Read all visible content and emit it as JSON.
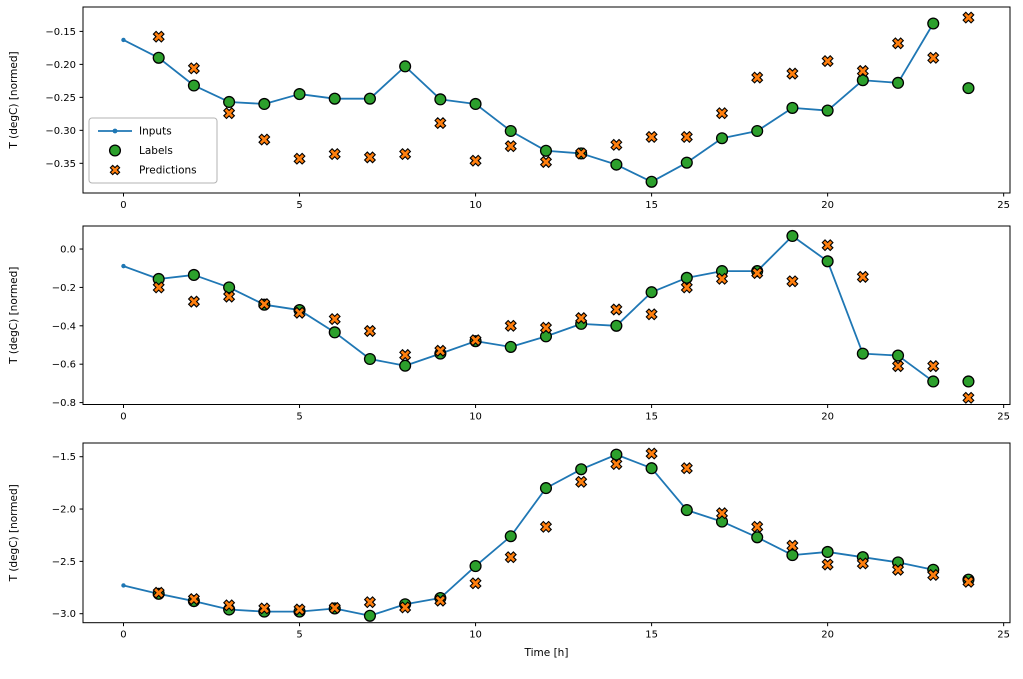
{
  "figure": {
    "kind": "matplotlib-figure",
    "xlabel": "Time [h]",
    "ylabel": "T (degC) [normed]",
    "legend": {
      "entries": [
        "Inputs",
        "Labels",
        "Predictions"
      ],
      "location": "center-left-of-first-subplot"
    },
    "colors": {
      "inputs_line": "#1f77b4",
      "labels_fill": "#2ca02c",
      "predictions_fill": "#ff7f0e",
      "marker_edge": "#000000",
      "legend_border": "#b3b3b3",
      "legend_bg": "#ffffff",
      "spine": "#000000"
    }
  },
  "chart_data": [
    {
      "type": "line",
      "subplot": 1,
      "ylabel": "T (degC) [normed]",
      "xlabel": "",
      "legend_visible": true,
      "xlim": [
        -1.15,
        25.18
      ],
      "ylim": [
        -0.395,
        -0.113
      ],
      "xticks": {
        "values": [
          0,
          5,
          10,
          15,
          20,
          25
        ],
        "labels": [
          "0",
          "5",
          "10",
          "15",
          "20",
          "25"
        ]
      },
      "yticks": {
        "values": [
          -0.15,
          -0.2,
          -0.25,
          -0.3,
          -0.35
        ],
        "labels": [
          "−0.15",
          "−0.20",
          "−0.25",
          "−0.30",
          "−0.35"
        ]
      },
      "series": [
        {
          "name": "Inputs",
          "style": "line-with-dots",
          "x": [
            0,
            1,
            2,
            3,
            4,
            5,
            6,
            7,
            8,
            9,
            10,
            11,
            12,
            13,
            14,
            15,
            16,
            17,
            18,
            19,
            20,
            21,
            22,
            23
          ],
          "y": [
            -0.163,
            -0.19,
            -0.232,
            -0.257,
            -0.26,
            -0.245,
            -0.252,
            -0.252,
            -0.203,
            -0.253,
            -0.26,
            -0.301,
            -0.331,
            -0.335,
            -0.352,
            -0.378,
            -0.349,
            -0.312,
            -0.301,
            -0.266,
            -0.27,
            -0.224,
            -0.228,
            -0.138
          ]
        },
        {
          "name": "Labels",
          "style": "circle",
          "x": [
            1,
            2,
            3,
            4,
            5,
            6,
            7,
            8,
            9,
            10,
            11,
            12,
            13,
            14,
            15,
            16,
            17,
            18,
            19,
            20,
            21,
            22,
            23,
            24
          ],
          "y": [
            -0.19,
            -0.232,
            -0.257,
            -0.26,
            -0.245,
            -0.252,
            -0.252,
            -0.203,
            -0.253,
            -0.26,
            -0.301,
            -0.331,
            -0.335,
            -0.352,
            -0.378,
            -0.349,
            -0.312,
            -0.301,
            -0.266,
            -0.27,
            -0.224,
            -0.228,
            -0.138,
            -0.236
          ]
        },
        {
          "name": "Predictions",
          "style": "x-marker",
          "x": [
            1,
            2,
            3,
            4,
            5,
            6,
            7,
            8,
            9,
            10,
            11,
            12,
            13,
            14,
            15,
            16,
            17,
            18,
            19,
            20,
            21,
            22,
            23,
            24
          ],
          "y": [
            -0.158,
            -0.206,
            -0.274,
            -0.314,
            -0.343,
            -0.336,
            -0.341,
            -0.336,
            -0.289,
            -0.346,
            -0.324,
            -0.348,
            -0.335,
            -0.322,
            -0.31,
            -0.31,
            -0.274,
            -0.22,
            -0.214,
            -0.195,
            -0.21,
            -0.168,
            -0.19,
            -0.129
          ]
        }
      ]
    },
    {
      "type": "line",
      "subplot": 2,
      "ylabel": "T (degC) [normed]",
      "xlabel": "",
      "legend_visible": false,
      "xlim": [
        -1.15,
        25.18
      ],
      "ylim": [
        -0.81,
        0.12
      ],
      "xticks": {
        "values": [
          0,
          5,
          10,
          15,
          20,
          25
        ],
        "labels": [
          "0",
          "5",
          "10",
          "15",
          "20",
          "25"
        ]
      },
      "yticks": {
        "values": [
          0.0,
          -0.2,
          -0.4,
          -0.6,
          -0.8
        ],
        "labels": [
          "0.0",
          "−0.2",
          "−0.4",
          "−0.6",
          "−0.8"
        ]
      },
      "series": [
        {
          "name": "Inputs",
          "style": "line-with-dots",
          "x": [
            0,
            1,
            2,
            3,
            4,
            5,
            6,
            7,
            8,
            9,
            10,
            11,
            12,
            13,
            14,
            15,
            16,
            17,
            18,
            19,
            20,
            21,
            22,
            23
          ],
          "y": [
            -0.089,
            -0.156,
            -0.135,
            -0.2,
            -0.29,
            -0.318,
            -0.434,
            -0.573,
            -0.608,
            -0.545,
            -0.48,
            -0.51,
            -0.455,
            -0.39,
            -0.4,
            -0.225,
            -0.15,
            -0.115,
            -0.115,
            0.068,
            -0.064,
            -0.545,
            -0.555,
            -0.69
          ]
        },
        {
          "name": "Labels",
          "style": "circle",
          "x": [
            1,
            2,
            3,
            4,
            5,
            6,
            7,
            8,
            9,
            10,
            11,
            12,
            13,
            14,
            15,
            16,
            17,
            18,
            19,
            20,
            21,
            22,
            23,
            24
          ],
          "y": [
            -0.156,
            -0.135,
            -0.2,
            -0.29,
            -0.318,
            -0.434,
            -0.573,
            -0.608,
            -0.545,
            -0.48,
            -0.51,
            -0.455,
            -0.39,
            -0.4,
            -0.225,
            -0.15,
            -0.115,
            -0.115,
            0.068,
            -0.064,
            -0.545,
            -0.555,
            -0.69,
            -0.69
          ]
        },
        {
          "name": "Predictions",
          "style": "x-marker",
          "x": [
            1,
            2,
            3,
            4,
            5,
            6,
            7,
            8,
            9,
            10,
            11,
            12,
            13,
            14,
            15,
            16,
            17,
            18,
            19,
            20,
            21,
            22,
            23,
            24
          ],
          "y": [
            -0.2,
            -0.274,
            -0.248,
            -0.287,
            -0.332,
            -0.365,
            -0.427,
            -0.552,
            -0.53,
            -0.475,
            -0.4,
            -0.41,
            -0.36,
            -0.315,
            -0.34,
            -0.2,
            -0.155,
            -0.125,
            -0.168,
            0.02,
            -0.145,
            -0.61,
            -0.61,
            -0.775
          ]
        }
      ]
    },
    {
      "type": "line",
      "subplot": 3,
      "ylabel": "T (degC) [normed]",
      "xlabel": "Time [h]",
      "legend_visible": false,
      "xlim": [
        -1.15,
        25.18
      ],
      "ylim": [
        -3.086,
        -1.369
      ],
      "xticks": {
        "values": [
          0,
          5,
          10,
          15,
          20,
          25
        ],
        "labels": [
          "0",
          "5",
          "10",
          "15",
          "20",
          "25"
        ]
      },
      "yticks": {
        "values": [
          -1.5,
          -2.0,
          -2.5,
          -3.0
        ],
        "labels": [
          "−1.5",
          "−2.0",
          "−2.5",
          "−3.0"
        ]
      },
      "series": [
        {
          "name": "Inputs",
          "style": "line-with-dots",
          "x": [
            0,
            1,
            2,
            3,
            4,
            5,
            6,
            7,
            8,
            9,
            10,
            11,
            12,
            13,
            14,
            15,
            16,
            17,
            18,
            19,
            20,
            21,
            22,
            23
          ],
          "y": [
            -2.73,
            -2.81,
            -2.88,
            -2.96,
            -2.98,
            -2.98,
            -2.95,
            -3.02,
            -2.91,
            -2.85,
            -2.545,
            -2.26,
            -1.8,
            -1.62,
            -1.48,
            -1.61,
            -2.01,
            -2.12,
            -2.27,
            -2.44,
            -2.41,
            -2.46,
            -2.51,
            -2.58
          ]
        },
        {
          "name": "Labels",
          "style": "circle",
          "x": [
            1,
            2,
            3,
            4,
            5,
            6,
            7,
            8,
            9,
            10,
            11,
            12,
            13,
            14,
            15,
            16,
            17,
            18,
            19,
            20,
            21,
            22,
            23,
            24
          ],
          "y": [
            -2.81,
            -2.88,
            -2.96,
            -2.98,
            -2.98,
            -2.95,
            -3.02,
            -2.91,
            -2.85,
            -2.545,
            -2.26,
            -1.8,
            -1.62,
            -1.48,
            -1.61,
            -2.01,
            -2.12,
            -2.27,
            -2.44,
            -2.41,
            -2.46,
            -2.51,
            -2.58,
            -2.675
          ]
        },
        {
          "name": "Predictions",
          "style": "x-marker",
          "x": [
            1,
            2,
            3,
            4,
            5,
            6,
            7,
            8,
            9,
            10,
            11,
            12,
            13,
            14,
            15,
            16,
            17,
            18,
            19,
            20,
            21,
            22,
            23,
            24
          ],
          "y": [
            -2.8,
            -2.86,
            -2.92,
            -2.95,
            -2.96,
            -2.945,
            -2.89,
            -2.94,
            -2.875,
            -2.71,
            -2.46,
            -2.17,
            -1.74,
            -1.57,
            -1.47,
            -1.61,
            -2.04,
            -2.17,
            -2.35,
            -2.53,
            -2.52,
            -2.58,
            -2.63,
            -2.695
          ]
        }
      ]
    }
  ]
}
